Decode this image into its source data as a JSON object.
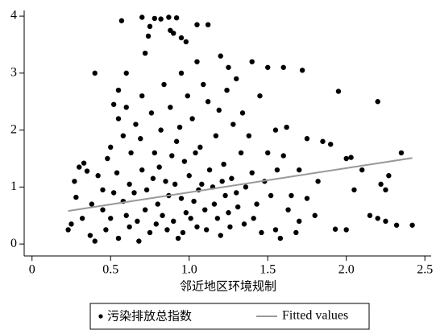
{
  "chart_data": {
    "type": "scatter",
    "xlabel": "邻近地区环境规制",
    "xlim": [
      -0.05,
      2.54
    ],
    "ylim": [
      -0.21,
      4.1
    ],
    "xticks": [
      0,
      0.5,
      {
        "value": 1,
        "label": "1.0"
      },
      1.5,
      {
        "value": 2,
        "label": "2.0"
      },
      2.5
    ],
    "yticks": [
      0,
      1,
      2,
      3,
      4
    ],
    "legend": "bottom",
    "series": [
      {
        "name": "污染排放总指数",
        "type": "scatter",
        "color": "#000000",
        "x": [
          0.57,
          0.7,
          0.78,
          0.82,
          0.87,
          0.92,
          0.95,
          0.98,
          1.05,
          1.12,
          0.75,
          0.74,
          0.72,
          0.88,
          0.9,
          1.2,
          1.25,
          1.4,
          1.5,
          1.6,
          1.72,
          1.95,
          2.2,
          0.4,
          0.55,
          0.6,
          1.05,
          0.95,
          1.3,
          1.45,
          1.85,
          1.9,
          2.0,
          2.03,
          2.1,
          2.05,
          2.15,
          2.2,
          2.25,
          2.32,
          2.42,
          2.22,
          2.27,
          1.93,
          2.0,
          1.8,
          1.7,
          1.65,
          1.6,
          1.7,
          1.55,
          1.62,
          1.75,
          1.5,
          1.55,
          1.58,
          2.35,
          2.25,
          0.23,
          0.25,
          0.27,
          0.3,
          0.33,
          0.35,
          0.28,
          0.32,
          0.37,
          0.4,
          0.42,
          0.38,
          0.45,
          0.48,
          0.47,
          0.5,
          0.55,
          0.52,
          0.6,
          0.58,
          0.62,
          0.55,
          0.6,
          0.65,
          0.7,
          0.75,
          0.8,
          0.85,
          0.9,
          0.95,
          1.0,
          1.05,
          1.1,
          1.15,
          1.2,
          1.25,
          1.3,
          1.35,
          1.4,
          0.68,
          0.72,
          0.78,
          0.82,
          0.88,
          0.92,
          0.97,
          1.02,
          1.07,
          1.12,
          1.17,
          1.22,
          1.28,
          1.33,
          1.38,
          1.43,
          1.48,
          0.63,
          0.66,
          0.7,
          0.76,
          0.84,
          0.86,
          0.93,
          0.98,
          1.03,
          1.08,
          1.13,
          1.18,
          1.23,
          1.27,
          0.58,
          0.62,
          0.67,
          0.73,
          0.79,
          0.83,
          0.87,
          0.91,
          0.96,
          1.01,
          1.06,
          1.11,
          1.16,
          1.21,
          1.26,
          1.31,
          1.36,
          1.41,
          1.46,
          0.5,
          0.52,
          0.45,
          0.54,
          0.69,
          0.81,
          0.94,
          0.99,
          1.09,
          1.19,
          1.24,
          1.34,
          1.52,
          1.56,
          1.63,
          1.68,
          1.75,
          1.82,
          0.77,
          0.89,
          1.04
        ],
        "y": [
          3.92,
          3.98,
          3.96,
          3.95,
          3.98,
          3.97,
          3.62,
          3.55,
          3.85,
          3.85,
          3.82,
          3.65,
          3.35,
          3.75,
          3.7,
          3.3,
          3.1,
          3.2,
          3.1,
          3.1,
          3.05,
          2.68,
          2.5,
          3.0,
          2.7,
          3.0,
          3.2,
          3.0,
          2.9,
          2.6,
          1.8,
          1.75,
          1.5,
          1.52,
          1.3,
          0.95,
          0.5,
          0.45,
          0.4,
          0.33,
          0.33,
          1.05,
          1.2,
          0.26,
          0.25,
          0.5,
          0.4,
          0.85,
          1.55,
          1.3,
          2.0,
          2.05,
          1.85,
          1.6,
          0.25,
          0.1,
          1.6,
          0.95,
          0.25,
          0.35,
          1.1,
          1.35,
          1.42,
          1.28,
          0.82,
          0.45,
          0.15,
          0.05,
          1.2,
          0.7,
          0.95,
          1.5,
          0.25,
          1.7,
          2.2,
          2.45,
          2.4,
          1.9,
          0.3,
          0.1,
          0.5,
          0.9,
          1.3,
          0.2,
          0.7,
          1.1,
          0.4,
          0.8,
          1.2,
          0.3,
          0.6,
          1.0,
          0.15,
          0.55,
          0.9,
          0.35,
          1.25,
          0.05,
          0.6,
          1.6,
          2.0,
          2.4,
          1.8,
          1.45,
          2.2,
          1.7,
          2.5,
          1.9,
          1.4,
          2.1,
          1.6,
          1.9,
          0.7,
          1.1,
          1.6,
          2.1,
          2.6,
          2.3,
          2.8,
          0.25,
          0.1,
          0.55,
          0.75,
          1.05,
          1.3,
          0.45,
          0.85,
          1.15,
          0.75,
          1.05,
          0.4,
          0.95,
          0.35,
          0.5,
          0.85,
          1.05,
          0.2,
          0.45,
          0.95,
          0.25,
          0.7,
          1.1,
          0.3,
          0.65,
          1.0,
          0.45,
          0.2,
          0.45,
          0.9,
          0.6,
          1.25,
          1.85,
          1.35,
          2.05,
          2.6,
          2.8,
          2.35,
          2.7,
          2.3,
          0.85,
          1.3,
          0.6,
          0.2,
          0.8,
          1.1,
          1.15,
          1.55,
          1.6
        ]
      },
      {
        "name": "Fitted values",
        "type": "line",
        "color": "#999999",
        "x": [
          0.23,
          2.42
        ],
        "y": [
          0.58,
          1.51
        ]
      }
    ]
  }
}
